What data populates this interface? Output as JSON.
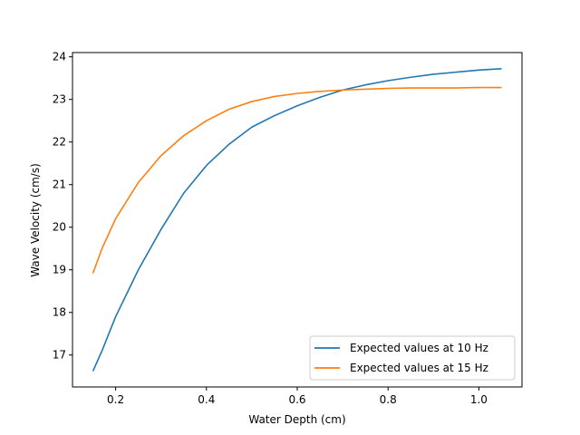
{
  "chart_data": {
    "type": "line",
    "title": "",
    "xlabel": "Water Depth (cm)",
    "ylabel": "Wave Velocity (cm/s)",
    "xlim": [
      0.105,
      1.095
    ],
    "ylim": [
      16.25,
      24.1
    ],
    "xticks": [
      0.2,
      0.4,
      0.6,
      0.8,
      1.0
    ],
    "xtick_labels": [
      "0.2",
      "0.4",
      "0.6",
      "0.8",
      "1.0"
    ],
    "yticks": [
      17,
      18,
      19,
      20,
      21,
      22,
      23,
      24
    ],
    "ytick_labels": [
      "17",
      "18",
      "19",
      "20",
      "21",
      "22",
      "23",
      "24"
    ],
    "grid": false,
    "legend_position": "lower-right",
    "series": [
      {
        "name": "Expected values at 10 Hz",
        "color": "#1f77b4",
        "x": [
          0.15,
          0.17,
          0.2,
          0.25,
          0.3,
          0.35,
          0.4,
          0.45,
          0.5,
          0.55,
          0.6,
          0.65,
          0.7,
          0.75,
          0.8,
          0.85,
          0.9,
          0.95,
          1.0,
          1.05
        ],
        "y": [
          16.62,
          17.1,
          17.9,
          19.0,
          19.95,
          20.8,
          21.45,
          21.95,
          22.35,
          22.62,
          22.85,
          23.05,
          23.22,
          23.34,
          23.44,
          23.52,
          23.59,
          23.64,
          23.69,
          23.72
        ]
      },
      {
        "name": "Expected values at 15 Hz",
        "color": "#ff7f0e",
        "x": [
          0.15,
          0.17,
          0.2,
          0.25,
          0.3,
          0.35,
          0.4,
          0.45,
          0.5,
          0.55,
          0.6,
          0.65,
          0.7,
          0.75,
          0.8,
          0.85,
          0.9,
          0.95,
          1.0,
          1.05
        ],
        "y": [
          18.92,
          19.5,
          20.2,
          21.05,
          21.68,
          22.15,
          22.5,
          22.77,
          22.95,
          23.07,
          23.14,
          23.19,
          23.22,
          23.24,
          23.26,
          23.27,
          23.27,
          23.27,
          23.28,
          23.28
        ]
      }
    ]
  }
}
